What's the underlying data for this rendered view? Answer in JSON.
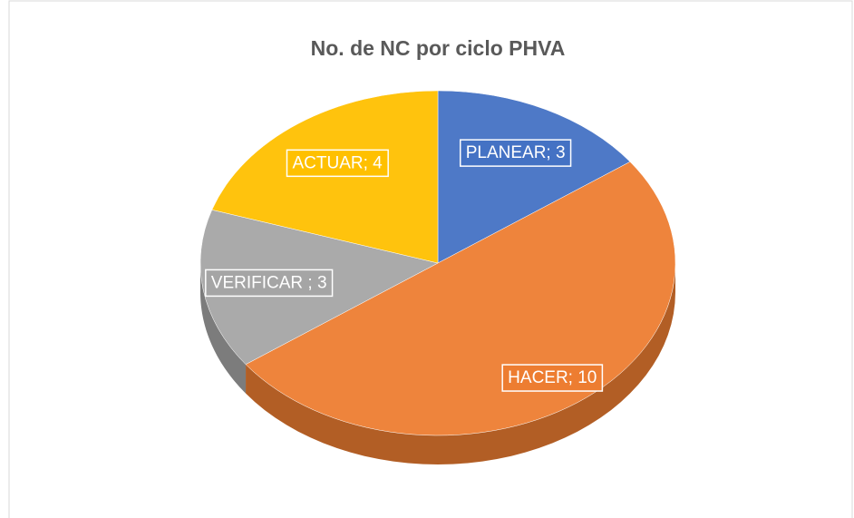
{
  "chart_data": {
    "type": "pie",
    "title": "No. de NC por ciclo PHVA",
    "categories": [
      "PLANEAR",
      "HACER",
      "VERIFICAR",
      "ACTUAR"
    ],
    "values": [
      3,
      10,
      3,
      4
    ],
    "value_labels": [
      "PLANEAR; 3",
      "HACER; 10",
      "VERIFICAR ; 3",
      "ACTUAR; 4"
    ],
    "colors": [
      "#4472c4",
      "#ed7d31",
      "#a5a5a5",
      "#ffc000"
    ]
  }
}
